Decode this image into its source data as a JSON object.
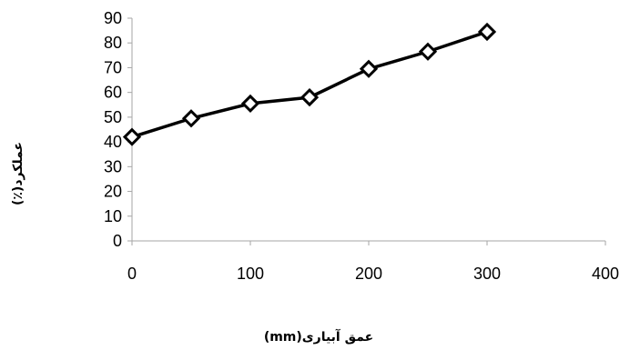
{
  "chart_data": {
    "type": "line",
    "title": "",
    "xlabel": "عمق آبیاری(mm)",
    "ylabel": "عملکرد(٪)",
    "xlim": [
      0,
      400
    ],
    "ylim": [
      0,
      90
    ],
    "x_ticks": [
      0,
      100,
      200,
      300,
      400
    ],
    "y_ticks": [
      0,
      10,
      20,
      30,
      40,
      50,
      60,
      70,
      80,
      90
    ],
    "grid": false,
    "legend": "none",
    "marker": "diamond-open",
    "line_color": "#000000",
    "series": [
      {
        "x": [
          0,
          50,
          100,
          150,
          200,
          250,
          300
        ],
        "values": [
          42,
          49.5,
          55.5,
          58,
          69.5,
          76.5,
          84.5
        ]
      }
    ]
  }
}
